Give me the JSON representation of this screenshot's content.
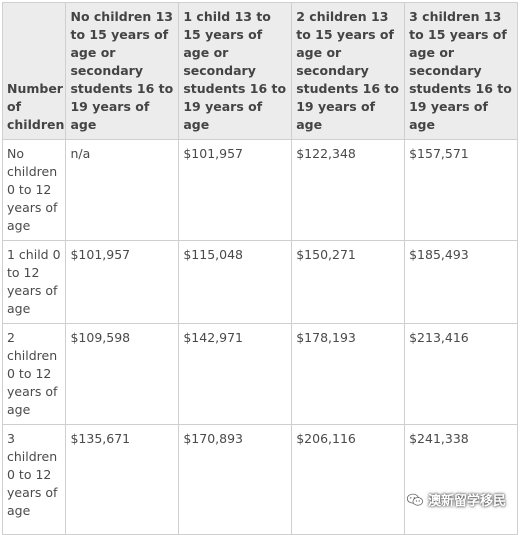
{
  "table": {
    "corner_header": "Number of children",
    "columns": [
      "No children 13 to 15 years of age or secondary students 16 to 19 years of age",
      "1 child 13 to 15 years of age or secondary students 16 to 19 years of age",
      "2 children 13 to 15 years of age or secondary students 16 to 19 years of age",
      "3 children 13 to 15 years of age or secondary students 16 to 19 years of age"
    ],
    "rows": [
      {
        "label": "No children 0 to 12 years of age",
        "cells": [
          "n/a",
          "$101,957",
          "$122,348",
          "$157,571"
        ]
      },
      {
        "label": "1 child 0 to 12 years of age",
        "cells": [
          "$101,957",
          "$115,048",
          "$150,271",
          "$185,493"
        ]
      },
      {
        "label": "2 children 0 to 12 years of age",
        "cells": [
          "$109,598",
          "$142,971",
          "$178,193",
          "$213,416"
        ]
      },
      {
        "label": "3 children 0 to 12 years of age",
        "cells": [
          "$135,671",
          "$170,893",
          "$206,116",
          "$241,338"
        ]
      }
    ]
  },
  "watermark": {
    "text": "澳新留学移民",
    "icon": "wechat-icon"
  }
}
